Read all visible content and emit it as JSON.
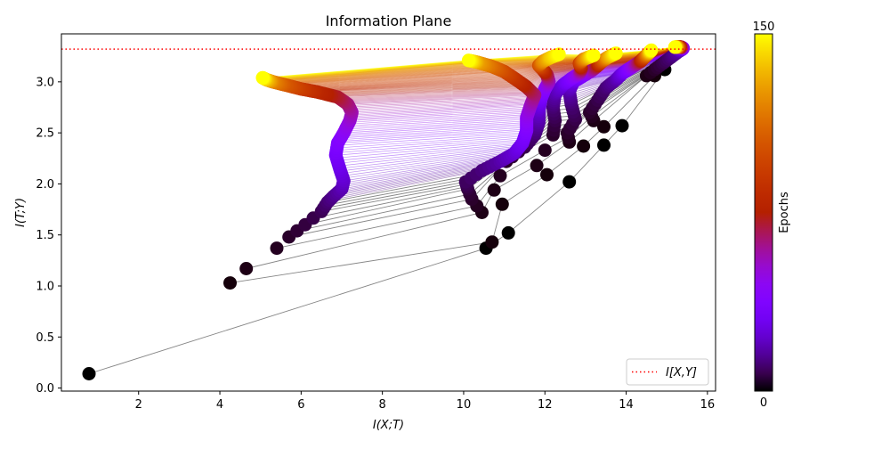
{
  "chart_data": {
    "type": "scatter",
    "title": "Information Plane",
    "xlabel": "I(X;T)",
    "ylabel": "I(T;Y)",
    "xlim": [
      0.1,
      16.2
    ],
    "ylim": [
      -0.03,
      3.47
    ],
    "xticks": [
      2,
      4,
      6,
      8,
      10,
      12,
      14,
      16
    ],
    "xtick_labels": [
      "2",
      "4",
      "6",
      "8",
      "10",
      "12",
      "14",
      "16"
    ],
    "yticks": [
      0.0,
      0.5,
      1.0,
      1.5,
      2.0,
      2.5,
      3.0
    ],
    "ytick_labels": [
      "0.0",
      "0.5",
      "1.0",
      "1.5",
      "2.0",
      "2.5",
      "3.0"
    ],
    "reference_line": {
      "y": 3.32,
      "label": "I[X,Y]",
      "color": "#ff0000",
      "style": "dotted"
    },
    "legend": {
      "position": "lower-right"
    },
    "grid": false,
    "marker_color_scale": "gnuplot",
    "connector_color": "#808080",
    "layer_paths": [
      {
        "layer": 1,
        "keyframes": [
          {
            "epoch": 0,
            "x": 0.78,
            "y": 0.14
          },
          {
            "epoch": 1,
            "x": 4.25,
            "y": 1.03
          },
          {
            "epoch": 2,
            "x": 4.65,
            "y": 1.17
          },
          {
            "epoch": 3,
            "x": 5.4,
            "y": 1.37
          },
          {
            "epoch": 4,
            "x": 5.7,
            "y": 1.48
          },
          {
            "epoch": 6,
            "x": 6.1,
            "y": 1.6
          },
          {
            "epoch": 8,
            "x": 6.5,
            "y": 1.73
          },
          {
            "epoch": 11,
            "x": 6.65,
            "y": 1.82
          },
          {
            "epoch": 14,
            "x": 6.8,
            "y": 1.88
          },
          {
            "epoch": 18,
            "x": 7.0,
            "y": 1.95
          },
          {
            "epoch": 22,
            "x": 7.05,
            "y": 2.03
          },
          {
            "epoch": 27,
            "x": 6.95,
            "y": 2.15
          },
          {
            "epoch": 32,
            "x": 6.85,
            "y": 2.28
          },
          {
            "epoch": 37,
            "x": 6.9,
            "y": 2.4
          },
          {
            "epoch": 43,
            "x": 7.05,
            "y": 2.5
          },
          {
            "epoch": 50,
            "x": 7.2,
            "y": 2.62
          },
          {
            "epoch": 56,
            "x": 7.25,
            "y": 2.7
          },
          {
            "epoch": 62,
            "x": 7.15,
            "y": 2.78
          },
          {
            "epoch": 70,
            "x": 6.9,
            "y": 2.85
          },
          {
            "epoch": 80,
            "x": 6.4,
            "y": 2.9
          },
          {
            "epoch": 92,
            "x": 6.0,
            "y": 2.93
          },
          {
            "epoch": 105,
            "x": 5.6,
            "y": 2.97
          },
          {
            "epoch": 120,
            "x": 5.3,
            "y": 3.0
          },
          {
            "epoch": 135,
            "x": 5.15,
            "y": 3.02
          },
          {
            "epoch": 150,
            "x": 5.05,
            "y": 3.04
          }
        ]
      },
      {
        "layer": 2,
        "keyframes": [
          {
            "epoch": 0,
            "x": 10.55,
            "y": 1.37
          },
          {
            "epoch": 1,
            "x": 10.7,
            "y": 1.43
          },
          {
            "epoch": 2,
            "x": 10.45,
            "y": 1.72
          },
          {
            "epoch": 4,
            "x": 10.2,
            "y": 1.85
          },
          {
            "epoch": 6,
            "x": 10.1,
            "y": 1.95
          },
          {
            "epoch": 9,
            "x": 10.05,
            "y": 2.02
          },
          {
            "epoch": 12,
            "x": 10.45,
            "y": 2.13
          },
          {
            "epoch": 17,
            "x": 10.9,
            "y": 2.22
          },
          {
            "epoch": 23,
            "x": 11.25,
            "y": 2.3
          },
          {
            "epoch": 30,
            "x": 11.45,
            "y": 2.4
          },
          {
            "epoch": 37,
            "x": 11.55,
            "y": 2.52
          },
          {
            "epoch": 45,
            "x": 11.55,
            "y": 2.65
          },
          {
            "epoch": 53,
            "x": 11.65,
            "y": 2.77
          },
          {
            "epoch": 62,
            "x": 11.75,
            "y": 2.87
          },
          {
            "epoch": 72,
            "x": 11.55,
            "y": 2.95
          },
          {
            "epoch": 84,
            "x": 11.3,
            "y": 3.02
          },
          {
            "epoch": 98,
            "x": 11.0,
            "y": 3.1
          },
          {
            "epoch": 112,
            "x": 10.7,
            "y": 3.15
          },
          {
            "epoch": 128,
            "x": 10.35,
            "y": 3.19
          },
          {
            "epoch": 150,
            "x": 10.12,
            "y": 3.21
          }
        ]
      },
      {
        "layer": 3,
        "keyframes": [
          {
            "epoch": 0,
            "x": 11.1,
            "y": 1.52
          },
          {
            "epoch": 1,
            "x": 10.95,
            "y": 1.8
          },
          {
            "epoch": 2,
            "x": 10.75,
            "y": 1.94
          },
          {
            "epoch": 4,
            "x": 11.05,
            "y": 2.22
          },
          {
            "epoch": 7,
            "x": 11.5,
            "y": 2.36
          },
          {
            "epoch": 11,
            "x": 11.75,
            "y": 2.48
          },
          {
            "epoch": 16,
            "x": 11.85,
            "y": 2.6
          },
          {
            "epoch": 22,
            "x": 11.85,
            "y": 2.72
          },
          {
            "epoch": 30,
            "x": 11.9,
            "y": 2.83
          },
          {
            "epoch": 40,
            "x": 12.0,
            "y": 2.93
          },
          {
            "epoch": 52,
            "x": 12.1,
            "y": 3.0
          },
          {
            "epoch": 66,
            "x": 12.05,
            "y": 3.07
          },
          {
            "epoch": 82,
            "x": 11.95,
            "y": 3.12
          },
          {
            "epoch": 100,
            "x": 11.85,
            "y": 3.16
          },
          {
            "epoch": 120,
            "x": 11.95,
            "y": 3.2
          },
          {
            "epoch": 138,
            "x": 12.15,
            "y": 3.24
          },
          {
            "epoch": 150,
            "x": 12.35,
            "y": 3.27
          }
        ]
      },
      {
        "layer": 4,
        "keyframes": [
          {
            "epoch": 0,
            "x": 12.6,
            "y": 2.02
          },
          {
            "epoch": 1,
            "x": 12.05,
            "y": 2.09
          },
          {
            "epoch": 2,
            "x": 11.8,
            "y": 2.18
          },
          {
            "epoch": 4,
            "x": 12.2,
            "y": 2.48
          },
          {
            "epoch": 7,
            "x": 12.25,
            "y": 2.62
          },
          {
            "epoch": 11,
            "x": 12.2,
            "y": 2.75
          },
          {
            "epoch": 17,
            "x": 12.25,
            "y": 2.88
          },
          {
            "epoch": 25,
            "x": 12.45,
            "y": 2.97
          },
          {
            "epoch": 36,
            "x": 12.65,
            "y": 3.03
          },
          {
            "epoch": 50,
            "x": 12.85,
            "y": 3.08
          },
          {
            "epoch": 68,
            "x": 12.9,
            "y": 3.13
          },
          {
            "epoch": 90,
            "x": 12.85,
            "y": 3.18
          },
          {
            "epoch": 115,
            "x": 12.95,
            "y": 3.22
          },
          {
            "epoch": 150,
            "x": 13.2,
            "y": 3.26
          }
        ]
      },
      {
        "layer": 5,
        "keyframes": [
          {
            "epoch": 0,
            "x": 13.45,
            "y": 2.38
          },
          {
            "epoch": 1,
            "x": 12.95,
            "y": 2.37
          },
          {
            "epoch": 2,
            "x": 12.6,
            "y": 2.41
          },
          {
            "epoch": 4,
            "x": 12.55,
            "y": 2.5
          },
          {
            "epoch": 7,
            "x": 12.75,
            "y": 2.63
          },
          {
            "epoch": 11,
            "x": 12.65,
            "y": 2.78
          },
          {
            "epoch": 17,
            "x": 12.6,
            "y": 2.91
          },
          {
            "epoch": 25,
            "x": 12.7,
            "y": 3.0
          },
          {
            "epoch": 37,
            "x": 12.95,
            "y": 3.06
          },
          {
            "epoch": 52,
            "x": 13.15,
            "y": 3.11
          },
          {
            "epoch": 72,
            "x": 13.3,
            "y": 3.16
          },
          {
            "epoch": 97,
            "x": 13.4,
            "y": 3.2
          },
          {
            "epoch": 125,
            "x": 13.55,
            "y": 3.24
          },
          {
            "epoch": 150,
            "x": 13.75,
            "y": 3.28
          }
        ]
      },
      {
        "layer": 6,
        "keyframes": [
          {
            "epoch": 0,
            "x": 13.9,
            "y": 2.57
          },
          {
            "epoch": 1,
            "x": 13.45,
            "y": 2.56
          },
          {
            "epoch": 2,
            "x": 13.2,
            "y": 2.62
          },
          {
            "epoch": 4,
            "x": 13.1,
            "y": 2.7
          },
          {
            "epoch": 7,
            "x": 13.3,
            "y": 2.82
          },
          {
            "epoch": 11,
            "x": 13.5,
            "y": 2.94
          },
          {
            "epoch": 17,
            "x": 13.75,
            "y": 3.02
          },
          {
            "epoch": 25,
            "x": 13.9,
            "y": 3.08
          },
          {
            "epoch": 36,
            "x": 14.05,
            "y": 3.12
          },
          {
            "epoch": 50,
            "x": 14.2,
            "y": 3.16
          },
          {
            "epoch": 70,
            "x": 14.35,
            "y": 3.2
          },
          {
            "epoch": 95,
            "x": 14.45,
            "y": 3.24
          },
          {
            "epoch": 125,
            "x": 14.55,
            "y": 3.28
          },
          {
            "epoch": 150,
            "x": 14.62,
            "y": 3.31
          }
        ]
      },
      {
        "layer": 7,
        "keyframes": [
          {
            "epoch": 0,
            "x": 14.95,
            "y": 3.12
          },
          {
            "epoch": 1,
            "x": 14.7,
            "y": 3.06
          },
          {
            "epoch": 2,
            "x": 14.5,
            "y": 3.06
          },
          {
            "epoch": 4,
            "x": 14.7,
            "y": 3.12
          },
          {
            "epoch": 7,
            "x": 14.9,
            "y": 3.18
          },
          {
            "epoch": 11,
            "x": 15.1,
            "y": 3.24
          },
          {
            "epoch": 17,
            "x": 15.3,
            "y": 3.3
          },
          {
            "epoch": 25,
            "x": 15.38,
            "y": 3.32
          },
          {
            "epoch": 40,
            "x": 15.4,
            "y": 3.33
          },
          {
            "epoch": 60,
            "x": 15.35,
            "y": 3.34
          },
          {
            "epoch": 90,
            "x": 15.3,
            "y": 3.34
          },
          {
            "epoch": 120,
            "x": 15.25,
            "y": 3.34
          },
          {
            "epoch": 150,
            "x": 15.2,
            "y": 3.34
          }
        ]
      }
    ],
    "colorbar": {
      "label": "Epochs",
      "min_label": "0",
      "max_label": "150",
      "min": 0,
      "max": 150
    }
  }
}
